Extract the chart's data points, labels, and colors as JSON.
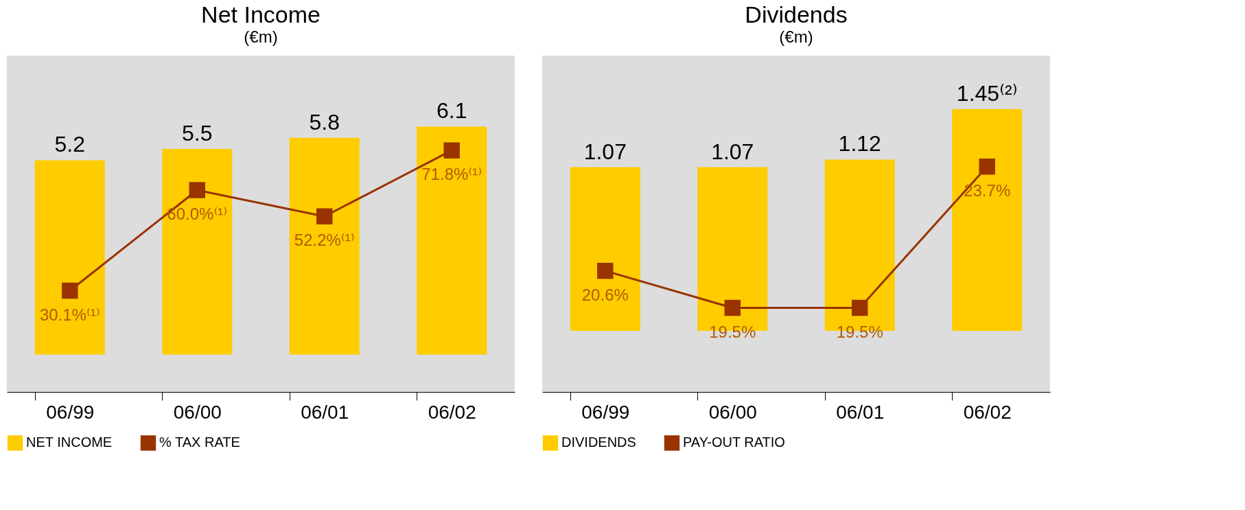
{
  "chart_data": [
    {
      "type": "bar",
      "title": "Net Income",
      "subtitle": "(€m)",
      "categories": [
        "06/99",
        "06/00",
        "06/01",
        "06/02"
      ],
      "data_labels": true,
      "legend": "bottom",
      "series": [
        {
          "name": "NET INCOME",
          "color": "#ffcc00",
          "values": [
            5.2,
            5.5,
            5.8,
            6.1
          ]
        },
        {
          "name": "% TAX RATE",
          "type": "line",
          "axis": "y2",
          "color": "#993300",
          "marker": "square",
          "values": [
            30.1,
            60.0,
            52.2,
            71.8
          ],
          "value_labels": [
            "30.1%⁽¹⁾",
            "60.0%⁽¹⁾",
            "52.2%⁽¹⁾",
            "71.8%⁽¹⁾"
          ]
        }
      ]
    },
    {
      "type": "bar",
      "title": "Dividends",
      "subtitle": "(€m)",
      "categories": [
        "06/99",
        "06/00",
        "06/01",
        "06/02"
      ],
      "legend": "bottom",
      "series": [
        {
          "name": "DIVIDENDS",
          "color": "#ffcc00",
          "values": [
            1.07,
            1.07,
            1.12,
            1.45
          ],
          "value_labels": [
            "1.07",
            "1.07",
            "1.12",
            "1.45⁽²⁾"
          ]
        },
        {
          "name": "PAY-OUT RATIO",
          "type": "line",
          "axis": "y2",
          "color": "#993300",
          "marker": "square",
          "values": [
            20.6,
            19.5,
            19.5,
            23.7
          ],
          "value_labels": [
            "20.6%",
            "19.5%",
            "19.5%",
            "23.7%"
          ]
        }
      ]
    }
  ]
}
